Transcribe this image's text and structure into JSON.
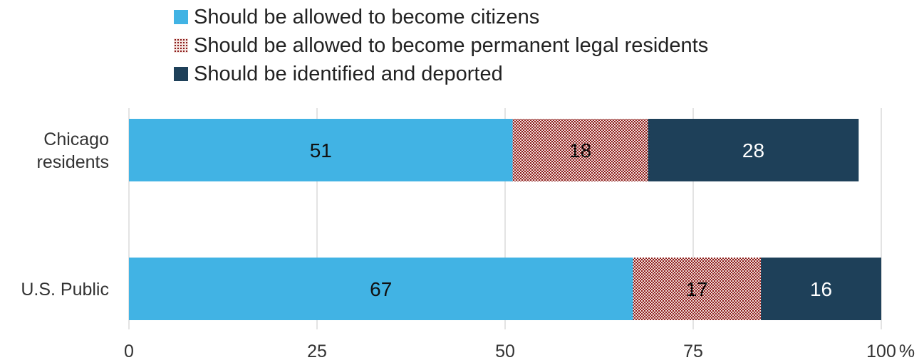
{
  "chart_data": {
    "type": "bar",
    "orientation": "horizontal",
    "stacked": true,
    "categories": [
      [
        "Chicago",
        "residents"
      ],
      [
        "U.S. Public"
      ]
    ],
    "series": [
      {
        "name": "Should be allowed to become citizens",
        "values": [
          51,
          67
        ],
        "color": "#41b3e4",
        "pattern": "solid",
        "label_color": "#111111"
      },
      {
        "name": "Should be allowed to become permanent legal residents",
        "values": [
          18,
          17
        ],
        "color": "#8b1a1a",
        "pattern": "dotted",
        "label_color": "#111111"
      },
      {
        "name": "Should be identified and deported",
        "values": [
          28,
          16
        ],
        "color": "#1e4059",
        "pattern": "solid",
        "label_color": "#ffffff"
      }
    ],
    "xlim": [
      0,
      100
    ],
    "xticks": [
      "0",
      "25",
      "50",
      "75",
      "100"
    ],
    "x_unit": "%",
    "grid": true,
    "legend_position": "top"
  }
}
